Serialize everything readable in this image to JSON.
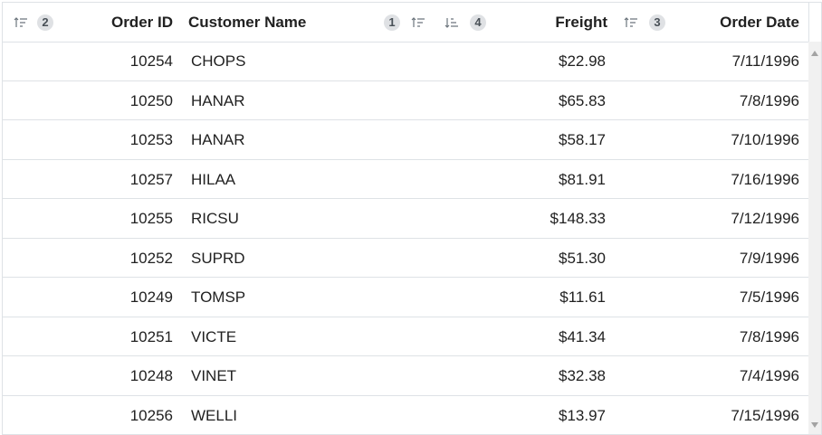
{
  "columns": {
    "first": {
      "sort_badge": "2",
      "sort_icon": "sort-ascending-icon"
    },
    "order_id": {
      "label": "Order ID"
    },
    "customer_name": {
      "label": "Customer Name",
      "sort_badge": "1",
      "sort_icon": "sort-ascending-icon"
    },
    "freight": {
      "label": "Freight",
      "sort_badge": "4",
      "sort_icon": "sort-descending-icon"
    },
    "order_date": {
      "label": "Order Date",
      "sort_badge": "3",
      "sort_icon": "sort-ascending-icon"
    }
  },
  "rows": [
    {
      "order_id": "10254",
      "customer_name": "CHOPS",
      "freight": "$22.98",
      "order_date": "7/11/1996"
    },
    {
      "order_id": "10250",
      "customer_name": "HANAR",
      "freight": "$65.83",
      "order_date": "7/8/1996"
    },
    {
      "order_id": "10253",
      "customer_name": "HANAR",
      "freight": "$58.17",
      "order_date": "7/10/1996"
    },
    {
      "order_id": "10257",
      "customer_name": "HILAA",
      "freight": "$81.91",
      "order_date": "7/16/1996"
    },
    {
      "order_id": "10255",
      "customer_name": "RICSU",
      "freight": "$148.33",
      "order_date": "7/12/1996"
    },
    {
      "order_id": "10252",
      "customer_name": "SUPRD",
      "freight": "$51.30",
      "order_date": "7/9/1996"
    },
    {
      "order_id": "10249",
      "customer_name": "TOMSP",
      "freight": "$11.61",
      "order_date": "7/5/1996"
    },
    {
      "order_id": "10251",
      "customer_name": "VICTE",
      "freight": "$41.34",
      "order_date": "7/8/1996"
    },
    {
      "order_id": "10248",
      "customer_name": "VINET",
      "freight": "$32.38",
      "order_date": "7/4/1996"
    },
    {
      "order_id": "10256",
      "customer_name": "WELLI",
      "freight": "$13.97",
      "order_date": "7/15/1996"
    }
  ]
}
